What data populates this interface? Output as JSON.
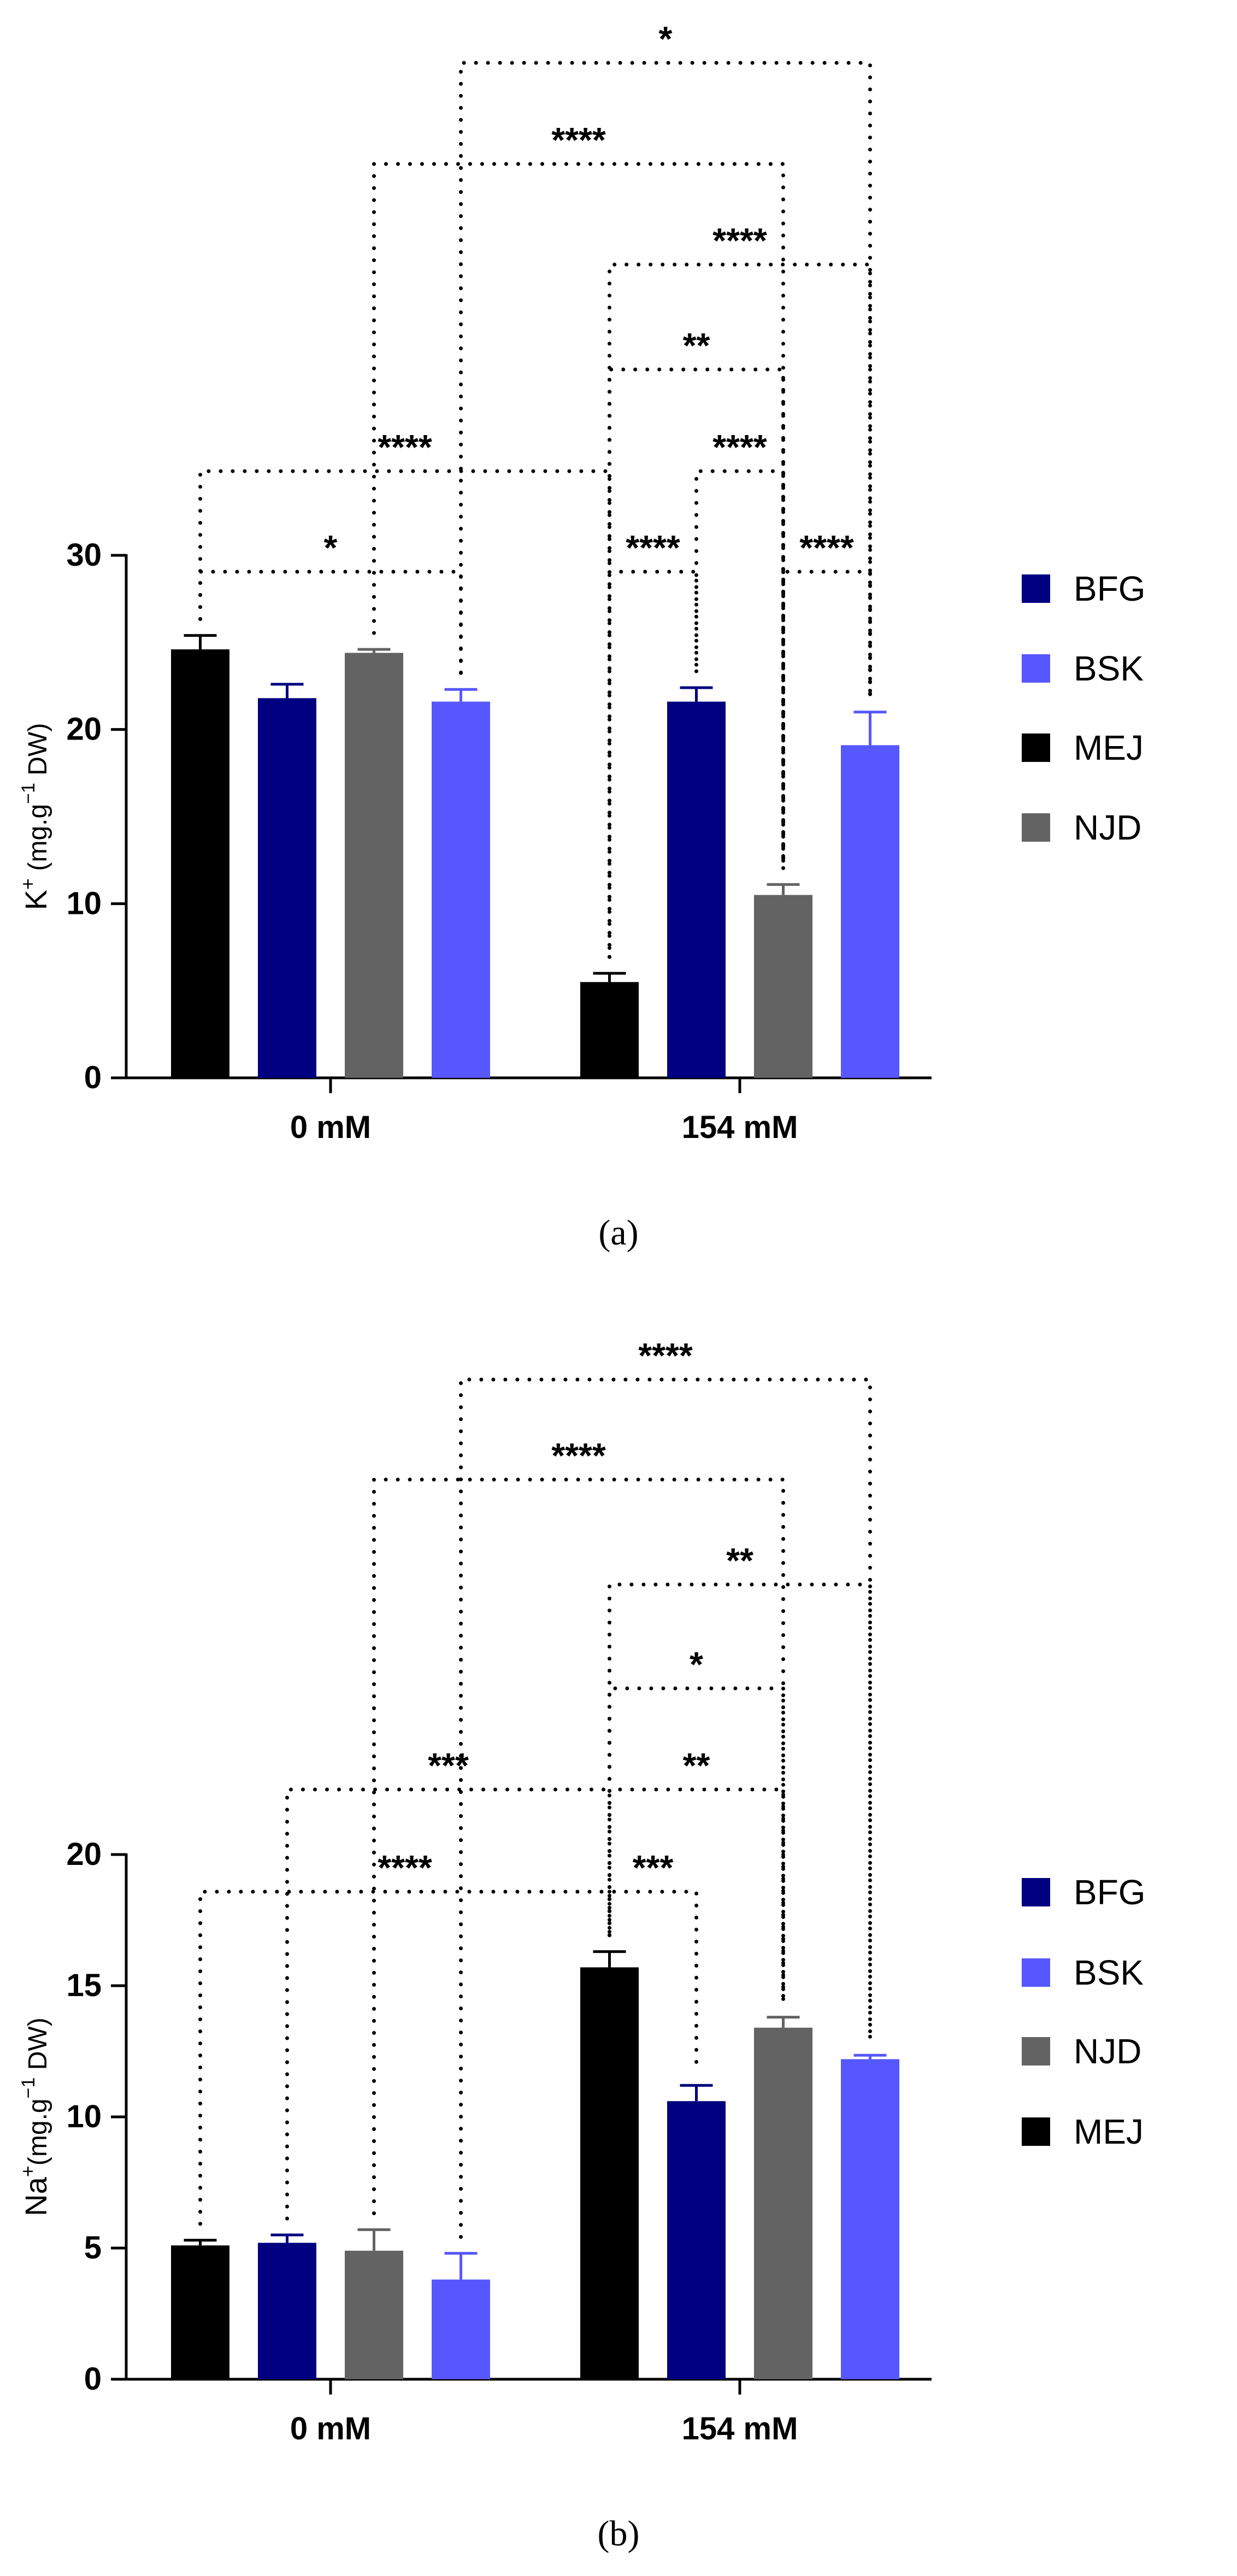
{
  "colors": {
    "MEJ": "#000000",
    "BFG": "#000080",
    "NJD": "#636363",
    "BSK": "#5757FF"
  },
  "chart_data": [
    {
      "type": "bar",
      "caption": "(a)",
      "ylabel_parts": {
        "main": "K",
        "sup": "+",
        "unit_pre": " (mg.g",
        "unit_sup": "−1",
        "unit_post": " DW)"
      },
      "ylim": [
        0,
        30
      ],
      "yticks": [
        0,
        10,
        20,
        30
      ],
      "categories": [
        "0 mM",
        "154 mM"
      ],
      "bar_order": [
        "MEJ",
        "BFG",
        "NJD",
        "BSK"
      ],
      "series": [
        {
          "name": "MEJ",
          "values": [
            24.6,
            5.5
          ],
          "errors": [
            0.8,
            0.5
          ]
        },
        {
          "name": "BFG",
          "values": [
            21.8,
            21.6
          ],
          "errors": [
            0.8,
            0.8
          ]
        },
        {
          "name": "NJD",
          "values": [
            24.4,
            10.5
          ],
          "errors": [
            0.2,
            0.6
          ]
        },
        {
          "name": "BSK",
          "values": [
            21.6,
            19.1
          ],
          "errors": [
            0.7,
            1.9
          ]
        }
      ],
      "legend": [
        "BFG",
        "BSK",
        "MEJ",
        "NJD"
      ],
      "significance": [
        {
          "a": [
            0,
            0
          ],
          "b": [
            0,
            3
          ],
          "label": "*"
        },
        {
          "a": [
            0,
            0
          ],
          "b": [
            1,
            0
          ],
          "label": "****"
        },
        {
          "a": [
            1,
            0
          ],
          "b": [
            1,
            1
          ],
          "label": "****"
        },
        {
          "a": [
            1,
            2
          ],
          "b": [
            1,
            3
          ],
          "label": "****"
        },
        {
          "a": [
            1,
            1
          ],
          "b": [
            1,
            2
          ],
          "label": "****"
        },
        {
          "a": [
            1,
            0
          ],
          "b": [
            1,
            2
          ],
          "label": "**"
        },
        {
          "a": [
            1,
            0
          ],
          "b": [
            1,
            3
          ],
          "label": "****"
        },
        {
          "a": [
            0,
            2
          ],
          "b": [
            1,
            2
          ],
          "label": "****"
        },
        {
          "a": [
            0,
            3
          ],
          "b": [
            1,
            3
          ],
          "label": "*"
        }
      ]
    },
    {
      "type": "bar",
      "caption": "(b)",
      "ylabel_parts": {
        "main": "Na",
        "sup": "+",
        "unit_pre": "(mg.g",
        "unit_sup": "−1",
        "unit_post": " DW)"
      },
      "ylim": [
        0,
        20
      ],
      "yticks": [
        0,
        5,
        10,
        15,
        20
      ],
      "categories": [
        "0 mM",
        "154 mM"
      ],
      "bar_order": [
        "MEJ",
        "BFG",
        "NJD",
        "BSK"
      ],
      "series": [
        {
          "name": "MEJ",
          "values": [
            5.1,
            15.7
          ],
          "errors": [
            0.2,
            0.6
          ]
        },
        {
          "name": "BFG",
          "values": [
            5.2,
            10.6
          ],
          "errors": [
            0.3,
            0.6
          ]
        },
        {
          "name": "NJD",
          "values": [
            4.9,
            13.4
          ],
          "errors": [
            0.8,
            0.4
          ]
        },
        {
          "name": "BSK",
          "values": [
            3.8,
            12.2
          ],
          "errors": [
            1.0,
            0.15
          ]
        }
      ],
      "legend": [
        "BFG",
        "BSK",
        "NJD",
        "MEJ"
      ],
      "significance": [
        {
          "a": [
            0,
            0
          ],
          "b": [
            1,
            0
          ],
          "label": "****"
        },
        {
          "a": [
            1,
            0
          ],
          "b": [
            1,
            1
          ],
          "label": "***"
        },
        {
          "a": [
            0,
            1
          ],
          "b": [
            1,
            0
          ],
          "label": "***"
        },
        {
          "a": [
            1,
            0
          ],
          "b": [
            1,
            2
          ],
          "label": "**"
        },
        {
          "a": [
            1,
            0
          ],
          "b": [
            1,
            2
          ],
          "label": "*"
        },
        {
          "a": [
            1,
            0
          ],
          "b": [
            1,
            3
          ],
          "label": "**"
        },
        {
          "a": [
            0,
            2
          ],
          "b": [
            1,
            2
          ],
          "label": "****"
        },
        {
          "a": [
            0,
            3
          ],
          "b": [
            1,
            3
          ],
          "label": "****"
        }
      ]
    }
  ]
}
